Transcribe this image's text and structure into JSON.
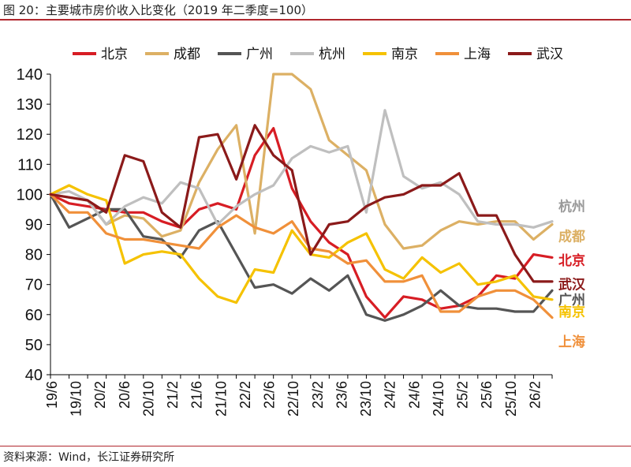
{
  "title": "图 20：主要城市房价收入比变化（2019 年二季度=100）",
  "source": "资料来源：Wind，长江证券研究所",
  "chart_data": {
    "type": "line",
    "ylim": [
      40,
      140
    ],
    "yticks": [
      40,
      50,
      60,
      70,
      80,
      90,
      100,
      110,
      120,
      130,
      140
    ],
    "xlim": [
      0,
      27
    ],
    "xtick_labels": [
      "19/6",
      "19/10",
      "20/2",
      "20/6",
      "20/10",
      "21/2",
      "21/6",
      "21/10",
      "22/2",
      "22/6",
      "22/10",
      "23/2",
      "23/6",
      "23/10",
      "24/2",
      "24/6",
      "24/10",
      "25/2",
      "25/6",
      "25/10",
      "26/2"
    ],
    "legend_position": "top",
    "grid": false,
    "series": [
      {
        "name": "北京",
        "color": "#d71d24",
        "points": [
          [
            0,
            100
          ],
          [
            1,
            97
          ],
          [
            2,
            96
          ],
          [
            3,
            95
          ],
          [
            4,
            94
          ],
          [
            5,
            94
          ],
          [
            6,
            91
          ],
          [
            7,
            89
          ],
          [
            8,
            95
          ],
          [
            9,
            97
          ],
          [
            10,
            95
          ],
          [
            11,
            113
          ],
          [
            12,
            122
          ],
          [
            13,
            102
          ],
          [
            14,
            91
          ],
          [
            15,
            84
          ],
          [
            16,
            80
          ],
          [
            17,
            66
          ],
          [
            18,
            59
          ],
          [
            19,
            66
          ],
          [
            20,
            65
          ],
          [
            21,
            62
          ],
          [
            22,
            63
          ],
          [
            23,
            66
          ],
          [
            24,
            73
          ],
          [
            25,
            72
          ],
          [
            26,
            80
          ],
          [
            27,
            79
          ]
        ]
      },
      {
        "name": "成都",
        "color": "#dcb064",
        "points": [
          [
            0,
            100
          ],
          [
            1,
            99
          ],
          [
            2,
            98
          ],
          [
            3,
            90
          ],
          [
            4,
            93
          ],
          [
            5,
            92
          ],
          [
            6,
            86
          ],
          [
            7,
            88
          ],
          [
            8,
            104
          ],
          [
            9,
            115
          ],
          [
            10,
            123
          ],
          [
            11,
            87
          ],
          [
            12,
            140
          ],
          [
            13,
            140
          ],
          [
            14,
            135
          ],
          [
            15,
            118
          ],
          [
            16,
            113
          ],
          [
            17,
            108
          ],
          [
            18,
            90
          ],
          [
            19,
            82
          ],
          [
            20,
            83
          ],
          [
            21,
            88
          ],
          [
            22,
            91
          ],
          [
            23,
            90
          ],
          [
            24,
            91
          ],
          [
            25,
            91
          ],
          [
            26,
            85
          ],
          [
            27,
            90
          ]
        ]
      },
      {
        "name": "广州",
        "color": "#555555",
        "points": [
          [
            0,
            100
          ],
          [
            1,
            89
          ],
          [
            2,
            92
          ],
          [
            3,
            95
          ],
          [
            4,
            95
          ],
          [
            5,
            86
          ],
          [
            6,
            85
          ],
          [
            7,
            79
          ],
          [
            8,
            88
          ],
          [
            9,
            91
          ],
          [
            10,
            80
          ],
          [
            11,
            69
          ],
          [
            12,
            70
          ],
          [
            13,
            67
          ],
          [
            14,
            72
          ],
          [
            15,
            68
          ],
          [
            16,
            73
          ],
          [
            17,
            60
          ],
          [
            18,
            58
          ],
          [
            19,
            60
          ],
          [
            20,
            63
          ],
          [
            21,
            68
          ],
          [
            22,
            63
          ],
          [
            23,
            62
          ],
          [
            24,
            62
          ],
          [
            25,
            61
          ],
          [
            26,
            61
          ],
          [
            27,
            68
          ]
        ]
      },
      {
        "name": "杭州",
        "color": "#bfbfbf",
        "points": [
          [
            0,
            100
          ],
          [
            1,
            101
          ],
          [
            2,
            98
          ],
          [
            3,
            90
          ],
          [
            4,
            96
          ],
          [
            5,
            99
          ],
          [
            6,
            97
          ],
          [
            7,
            104
          ],
          [
            8,
            102
          ],
          [
            9,
            90
          ],
          [
            10,
            96
          ],
          [
            11,
            100
          ],
          [
            12,
            103
          ],
          [
            13,
            112
          ],
          [
            14,
            116
          ],
          [
            15,
            114
          ],
          [
            16,
            116
          ],
          [
            17,
            94
          ],
          [
            18,
            128
          ],
          [
            19,
            106
          ],
          [
            20,
            102
          ],
          [
            21,
            104
          ],
          [
            22,
            100
          ],
          [
            23,
            91
          ],
          [
            24,
            90
          ],
          [
            25,
            90
          ],
          [
            26,
            89
          ],
          [
            27,
            91
          ]
        ]
      },
      {
        "name": "南京",
        "color": "#f5c200",
        "points": [
          [
            0,
            100
          ],
          [
            1,
            103
          ],
          [
            2,
            100
          ],
          [
            3,
            98
          ],
          [
            4,
            77
          ],
          [
            5,
            80
          ],
          [
            6,
            81
          ],
          [
            7,
            80
          ],
          [
            8,
            72
          ],
          [
            9,
            66
          ],
          [
            10,
            64
          ],
          [
            11,
            75
          ],
          [
            12,
            74
          ],
          [
            13,
            88
          ],
          [
            14,
            80
          ],
          [
            15,
            79
          ],
          [
            16,
            84
          ],
          [
            17,
            87
          ],
          [
            18,
            75
          ],
          [
            19,
            72
          ],
          [
            20,
            79
          ],
          [
            21,
            74
          ],
          [
            22,
            77
          ],
          [
            23,
            70
          ],
          [
            24,
            71
          ],
          [
            25,
            73
          ],
          [
            26,
            66
          ],
          [
            27,
            65
          ]
        ]
      },
      {
        "name": "上海",
        "color": "#f0903a",
        "points": [
          [
            0,
            100
          ],
          [
            1,
            94
          ],
          [
            2,
            94
          ],
          [
            3,
            87
          ],
          [
            4,
            85
          ],
          [
            5,
            85
          ],
          [
            6,
            84
          ],
          [
            7,
            83
          ],
          [
            8,
            82
          ],
          [
            9,
            89
          ],
          [
            10,
            93
          ],
          [
            11,
            89
          ],
          [
            12,
            87
          ],
          [
            13,
            91
          ],
          [
            14,
            82
          ],
          [
            15,
            81
          ],
          [
            16,
            77
          ],
          [
            17,
            78
          ],
          [
            18,
            71
          ],
          [
            19,
            71
          ],
          [
            20,
            73
          ],
          [
            21,
            61
          ],
          [
            22,
            61
          ],
          [
            23,
            66
          ],
          [
            24,
            68
          ],
          [
            25,
            68
          ],
          [
            26,
            65
          ],
          [
            27,
            59
          ]
        ]
      },
      {
        "name": "武汉",
        "color": "#8b1a1a",
        "points": [
          [
            0,
            100
          ],
          [
            1,
            99
          ],
          [
            2,
            98
          ],
          [
            3,
            94
          ],
          [
            4,
            113
          ],
          [
            5,
            111
          ],
          [
            6,
            94
          ],
          [
            7,
            89
          ],
          [
            8,
            119
          ],
          [
            9,
            120
          ],
          [
            10,
            105
          ],
          [
            11,
            123
          ],
          [
            12,
            113
          ],
          [
            13,
            108
          ],
          [
            14,
            80
          ],
          [
            15,
            90
          ],
          [
            16,
            91
          ],
          [
            17,
            96
          ],
          [
            18,
            99
          ],
          [
            19,
            100
          ],
          [
            20,
            103
          ],
          [
            21,
            103
          ],
          [
            22,
            107
          ],
          [
            23,
            93
          ],
          [
            24,
            93
          ],
          [
            25,
            80
          ],
          [
            26,
            71
          ],
          [
            27,
            71
          ]
        ]
      }
    ],
    "end_labels": [
      {
        "text": "杭州",
        "color": "#999999",
        "y": 96
      },
      {
        "text": "成都",
        "color": "#dcb064",
        "y": 86
      },
      {
        "text": "北京",
        "color": "#d71d24",
        "y": 78
      },
      {
        "text": "武汉",
        "color": "#8b1a1a",
        "y": 70
      },
      {
        "text": "广州",
        "color": "#555555",
        "y": 65
      },
      {
        "text": "南京",
        "color": "#f5c200",
        "y": 61
      },
      {
        "text": "上海",
        "color": "#f0903a",
        "y": 51
      }
    ]
  }
}
